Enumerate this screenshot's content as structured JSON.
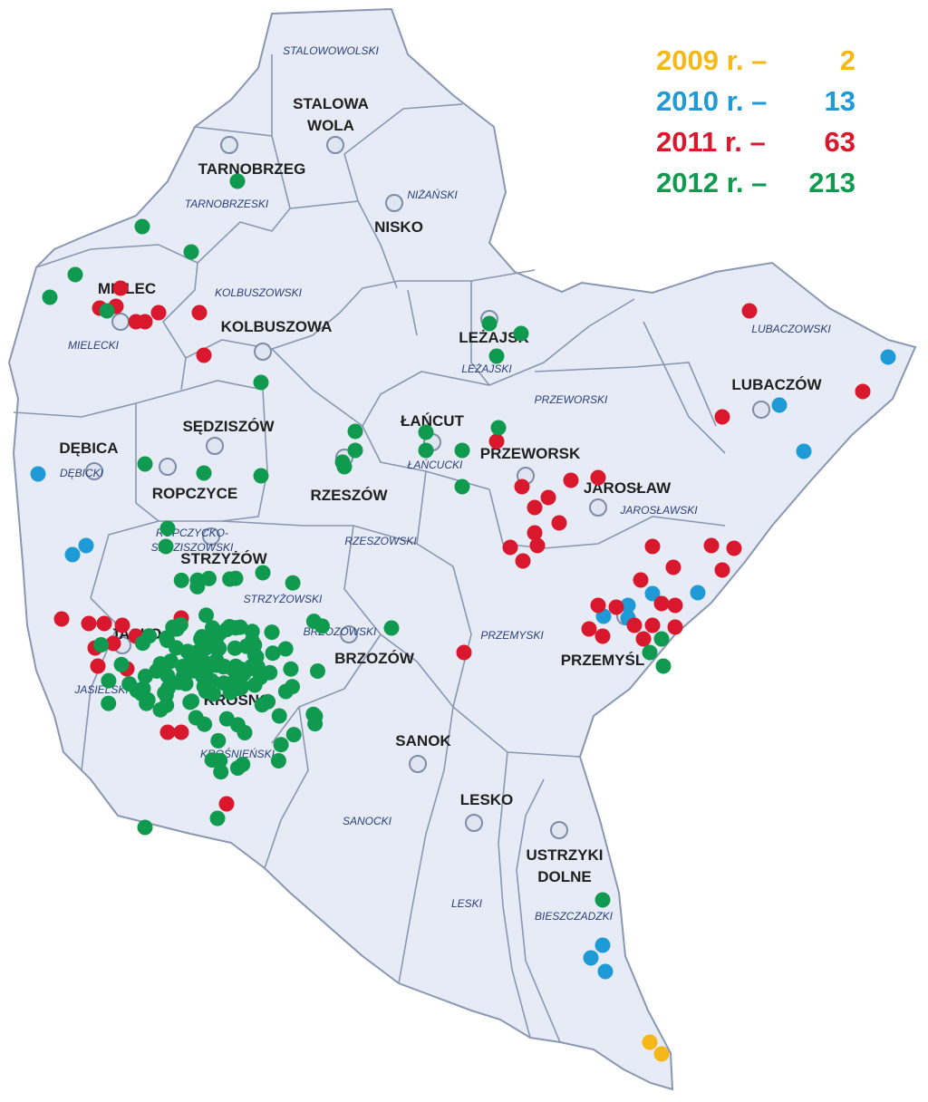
{
  "title": "",
  "colors": {
    "background": "#ffffff",
    "region_fill": "#e6ebf6",
    "border": "#8a97b2",
    "town_label": "#202020",
    "county_label": "#2a3f7a",
    "town_marker": "#dfe6f2"
  },
  "legend": [
    {
      "year": "2009 r. –",
      "count": "2",
      "color": "#f5b818"
    },
    {
      "year": "2010 r. –",
      "count": "13",
      "color": "#1e9bd7"
    },
    {
      "year": "2011 r. –",
      "count": "63",
      "color": "#d9182d"
    },
    {
      "year": "2012 r. –",
      "count": "213",
      "color": "#0f9a4f"
    }
  ],
  "towns": [
    "STALOWA WOLA",
    "TARNOBRZEG",
    "NISKO",
    "MIELEC",
    "KOLBUSZOWA",
    "LEŻAJSK",
    "LUBACZÓW",
    "ŁAŃCUT",
    "SĘDZISZÓW",
    "DĘBICA",
    "ROPCZYCE",
    "PRZEWORSK",
    "JAROSŁAW",
    "RZESZÓW",
    "STRZYŻÓW",
    "JASŁO",
    "BRZOZÓW",
    "KROSNO",
    "PRZEMYŚL",
    "SANOK",
    "LESKO",
    "USTRZYKI DOLNE"
  ],
  "counties": [
    "STALOWOWOLSKI",
    "TARNOBRZESKI",
    "NIŻAŃSKI",
    "KOLBUSZOWSKI",
    "MIELECKI",
    "LUBACZOWSKI",
    "LEŻAJSKI",
    "PRZEWORSKI",
    "ŁAŃCUCKI",
    "DĘBICKI",
    "ROPCZYCKO-SĘDZISZOWSKI",
    "RZESZOWSKI",
    "JAROSŁAWSKI",
    "STRZYŻOWSKI",
    "BRZOZOWSKI",
    "PRZEMYSKI",
    "JASIELSKI",
    "KROŚNIEŃSKI",
    "SANOCKI",
    "LESKI",
    "BIESZCZADZKI"
  ]
}
